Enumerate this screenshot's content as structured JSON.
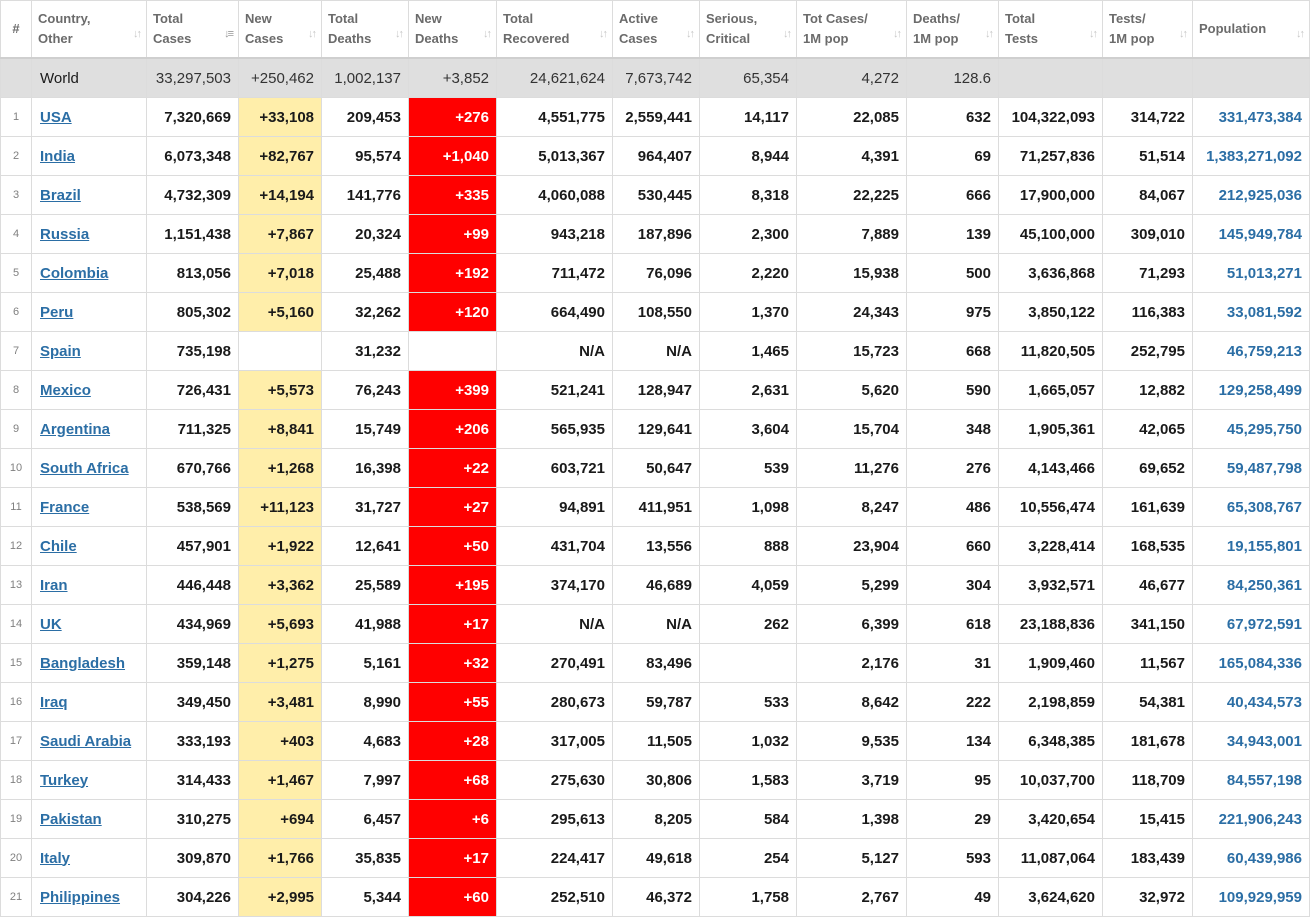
{
  "columns": [
    {
      "l1": "#",
      "l2": ""
    },
    {
      "l1": "Country,",
      "l2": "Other"
    },
    {
      "l1": "Total",
      "l2": "Cases"
    },
    {
      "l1": "New",
      "l2": "Cases"
    },
    {
      "l1": "Total",
      "l2": "Deaths"
    },
    {
      "l1": "New",
      "l2": "Deaths"
    },
    {
      "l1": "Total",
      "l2": "Recovered"
    },
    {
      "l1": "Active",
      "l2": "Cases"
    },
    {
      "l1": "Serious,",
      "l2": "Critical"
    },
    {
      "l1": "Tot Cases/",
      "l2": "1M pop"
    },
    {
      "l1": "Deaths/",
      "l2": "1M pop"
    },
    {
      "l1": "Total",
      "l2": "Tests"
    },
    {
      "l1": "Tests/",
      "l2": "1M pop"
    },
    {
      "l1": "Population",
      "l2": ""
    }
  ],
  "colors": {
    "new_cases_bg": "#ffeeaa",
    "new_deaths_bg": "#ff0000",
    "link": "#2b6ea5",
    "world_bg": "#dfdfdf"
  },
  "icons": {
    "sort_active": "sort-descending-icon",
    "sort": "sort-arrows-icon"
  },
  "world": {
    "country": "World",
    "total_cases": "33,297,503",
    "new_cases": "+250,462",
    "total_deaths": "1,002,137",
    "new_deaths": "+3,852",
    "total_recovered": "24,621,624",
    "active_cases": "7,673,742",
    "serious": "65,354",
    "cases_per_1m": "4,272",
    "deaths_per_1m": "128.6",
    "total_tests": "",
    "tests_per_1m": "",
    "population": ""
  },
  "rows": [
    {
      "n": "1",
      "country": "USA",
      "total_cases": "7,320,669",
      "new_cases": "+33,108",
      "total_deaths": "209,453",
      "new_deaths": "+276",
      "total_recovered": "4,551,775",
      "active_cases": "2,559,441",
      "serious": "14,117",
      "cases_per_1m": "22,085",
      "deaths_per_1m": "632",
      "total_tests": "104,322,093",
      "tests_per_1m": "314,722",
      "population": "331,473,384"
    },
    {
      "n": "2",
      "country": "India",
      "total_cases": "6,073,348",
      "new_cases": "+82,767",
      "total_deaths": "95,574",
      "new_deaths": "+1,040",
      "total_recovered": "5,013,367",
      "active_cases": "964,407",
      "serious": "8,944",
      "cases_per_1m": "4,391",
      "deaths_per_1m": "69",
      "total_tests": "71,257,836",
      "tests_per_1m": "51,514",
      "population": "1,383,271,092"
    },
    {
      "n": "3",
      "country": "Brazil",
      "total_cases": "4,732,309",
      "new_cases": "+14,194",
      "total_deaths": "141,776",
      "new_deaths": "+335",
      "total_recovered": "4,060,088",
      "active_cases": "530,445",
      "serious": "8,318",
      "cases_per_1m": "22,225",
      "deaths_per_1m": "666",
      "total_tests": "17,900,000",
      "tests_per_1m": "84,067",
      "population": "212,925,036"
    },
    {
      "n": "4",
      "country": "Russia",
      "total_cases": "1,151,438",
      "new_cases": "+7,867",
      "total_deaths": "20,324",
      "new_deaths": "+99",
      "total_recovered": "943,218",
      "active_cases": "187,896",
      "serious": "2,300",
      "cases_per_1m": "7,889",
      "deaths_per_1m": "139",
      "total_tests": "45,100,000",
      "tests_per_1m": "309,010",
      "population": "145,949,784"
    },
    {
      "n": "5",
      "country": "Colombia",
      "total_cases": "813,056",
      "new_cases": "+7,018",
      "total_deaths": "25,488",
      "new_deaths": "+192",
      "total_recovered": "711,472",
      "active_cases": "76,096",
      "serious": "2,220",
      "cases_per_1m": "15,938",
      "deaths_per_1m": "500",
      "total_tests": "3,636,868",
      "tests_per_1m": "71,293",
      "population": "51,013,271"
    },
    {
      "n": "6",
      "country": "Peru",
      "total_cases": "805,302",
      "new_cases": "+5,160",
      "total_deaths": "32,262",
      "new_deaths": "+120",
      "total_recovered": "664,490",
      "active_cases": "108,550",
      "serious": "1,370",
      "cases_per_1m": "24,343",
      "deaths_per_1m": "975",
      "total_tests": "3,850,122",
      "tests_per_1m": "116,383",
      "population": "33,081,592"
    },
    {
      "n": "7",
      "country": "Spain",
      "total_cases": "735,198",
      "new_cases": "",
      "total_deaths": "31,232",
      "new_deaths": "",
      "total_recovered": "N/A",
      "active_cases": "N/A",
      "serious": "1,465",
      "cases_per_1m": "15,723",
      "deaths_per_1m": "668",
      "total_tests": "11,820,505",
      "tests_per_1m": "252,795",
      "population": "46,759,213"
    },
    {
      "n": "8",
      "country": "Mexico",
      "total_cases": "726,431",
      "new_cases": "+5,573",
      "total_deaths": "76,243",
      "new_deaths": "+399",
      "total_recovered": "521,241",
      "active_cases": "128,947",
      "serious": "2,631",
      "cases_per_1m": "5,620",
      "deaths_per_1m": "590",
      "total_tests": "1,665,057",
      "tests_per_1m": "12,882",
      "population": "129,258,499"
    },
    {
      "n": "9",
      "country": "Argentina",
      "total_cases": "711,325",
      "new_cases": "+8,841",
      "total_deaths": "15,749",
      "new_deaths": "+206",
      "total_recovered": "565,935",
      "active_cases": "129,641",
      "serious": "3,604",
      "cases_per_1m": "15,704",
      "deaths_per_1m": "348",
      "total_tests": "1,905,361",
      "tests_per_1m": "42,065",
      "population": "45,295,750"
    },
    {
      "n": "10",
      "country": "South Africa",
      "total_cases": "670,766",
      "new_cases": "+1,268",
      "total_deaths": "16,398",
      "new_deaths": "+22",
      "total_recovered": "603,721",
      "active_cases": "50,647",
      "serious": "539",
      "cases_per_1m": "11,276",
      "deaths_per_1m": "276",
      "total_tests": "4,143,466",
      "tests_per_1m": "69,652",
      "population": "59,487,798"
    },
    {
      "n": "11",
      "country": "France",
      "total_cases": "538,569",
      "new_cases": "+11,123",
      "total_deaths": "31,727",
      "new_deaths": "+27",
      "total_recovered": "94,891",
      "active_cases": "411,951",
      "serious": "1,098",
      "cases_per_1m": "8,247",
      "deaths_per_1m": "486",
      "total_tests": "10,556,474",
      "tests_per_1m": "161,639",
      "population": "65,308,767"
    },
    {
      "n": "12",
      "country": "Chile",
      "total_cases": "457,901",
      "new_cases": "+1,922",
      "total_deaths": "12,641",
      "new_deaths": "+50",
      "total_recovered": "431,704",
      "active_cases": "13,556",
      "serious": "888",
      "cases_per_1m": "23,904",
      "deaths_per_1m": "660",
      "total_tests": "3,228,414",
      "tests_per_1m": "168,535",
      "population": "19,155,801"
    },
    {
      "n": "13",
      "country": "Iran",
      "total_cases": "446,448",
      "new_cases": "+3,362",
      "total_deaths": "25,589",
      "new_deaths": "+195",
      "total_recovered": "374,170",
      "active_cases": "46,689",
      "serious": "4,059",
      "cases_per_1m": "5,299",
      "deaths_per_1m": "304",
      "total_tests": "3,932,571",
      "tests_per_1m": "46,677",
      "population": "84,250,361"
    },
    {
      "n": "14",
      "country": "UK",
      "total_cases": "434,969",
      "new_cases": "+5,693",
      "total_deaths": "41,988",
      "new_deaths": "+17",
      "total_recovered": "N/A",
      "active_cases": "N/A",
      "serious": "262",
      "cases_per_1m": "6,399",
      "deaths_per_1m": "618",
      "total_tests": "23,188,836",
      "tests_per_1m": "341,150",
      "population": "67,972,591"
    },
    {
      "n": "15",
      "country": "Bangladesh",
      "total_cases": "359,148",
      "new_cases": "+1,275",
      "total_deaths": "5,161",
      "new_deaths": "+32",
      "total_recovered": "270,491",
      "active_cases": "83,496",
      "serious": "",
      "cases_per_1m": "2,176",
      "deaths_per_1m": "31",
      "total_tests": "1,909,460",
      "tests_per_1m": "11,567",
      "population": "165,084,336"
    },
    {
      "n": "16",
      "country": "Iraq",
      "total_cases": "349,450",
      "new_cases": "+3,481",
      "total_deaths": "8,990",
      "new_deaths": "+55",
      "total_recovered": "280,673",
      "active_cases": "59,787",
      "serious": "533",
      "cases_per_1m": "8,642",
      "deaths_per_1m": "222",
      "total_tests": "2,198,859",
      "tests_per_1m": "54,381",
      "population": "40,434,573"
    },
    {
      "n": "17",
      "country": "Saudi Arabia",
      "total_cases": "333,193",
      "new_cases": "+403",
      "total_deaths": "4,683",
      "new_deaths": "+28",
      "total_recovered": "317,005",
      "active_cases": "11,505",
      "serious": "1,032",
      "cases_per_1m": "9,535",
      "deaths_per_1m": "134",
      "total_tests": "6,348,385",
      "tests_per_1m": "181,678",
      "population": "34,943,001"
    },
    {
      "n": "18",
      "country": "Turkey",
      "total_cases": "314,433",
      "new_cases": "+1,467",
      "total_deaths": "7,997",
      "new_deaths": "+68",
      "total_recovered": "275,630",
      "active_cases": "30,806",
      "serious": "1,583",
      "cases_per_1m": "3,719",
      "deaths_per_1m": "95",
      "total_tests": "10,037,700",
      "tests_per_1m": "118,709",
      "population": "84,557,198"
    },
    {
      "n": "19",
      "country": "Pakistan",
      "total_cases": "310,275",
      "new_cases": "+694",
      "total_deaths": "6,457",
      "new_deaths": "+6",
      "total_recovered": "295,613",
      "active_cases": "8,205",
      "serious": "584",
      "cases_per_1m": "1,398",
      "deaths_per_1m": "29",
      "total_tests": "3,420,654",
      "tests_per_1m": "15,415",
      "population": "221,906,243"
    },
    {
      "n": "20",
      "country": "Italy",
      "total_cases": "309,870",
      "new_cases": "+1,766",
      "total_deaths": "35,835",
      "new_deaths": "+17",
      "total_recovered": "224,417",
      "active_cases": "49,618",
      "serious": "254",
      "cases_per_1m": "5,127",
      "deaths_per_1m": "593",
      "total_tests": "11,087,064",
      "tests_per_1m": "183,439",
      "population": "60,439,986"
    },
    {
      "n": "21",
      "country": "Philippines",
      "total_cases": "304,226",
      "new_cases": "+2,995",
      "total_deaths": "5,344",
      "new_deaths": "+60",
      "total_recovered": "252,510",
      "active_cases": "46,372",
      "serious": "1,758",
      "cases_per_1m": "2,767",
      "deaths_per_1m": "49",
      "total_tests": "3,624,620",
      "tests_per_1m": "32,972",
      "population": "109,929,959"
    }
  ]
}
